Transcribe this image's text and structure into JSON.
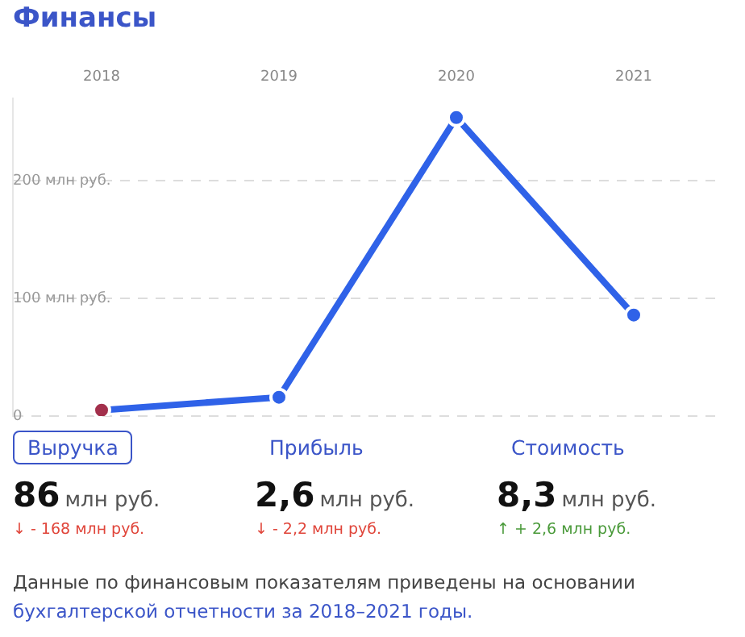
{
  "chart_data": {
    "type": "line",
    "title": "Финансы",
    "categories": [
      "2018",
      "2019",
      "2020",
      "2021"
    ],
    "series": [
      {
        "color": "#2f62e8",
        "colors": [
          "#a3304c",
          "#2f62e8",
          "#2f62e8",
          "#2f62e8"
        ],
        "values": [
          5,
          16,
          254,
          86
        ]
      }
    ],
    "ylim": [
      0,
      270
    ],
    "yticks": [
      {
        "value": 0,
        "label": "0"
      },
      {
        "value": 100,
        "label": "100 млн руб."
      },
      {
        "value": 200,
        "label": "200 млн руб."
      }
    ],
    "grid": "y",
    "legend": false,
    "marker": "circle",
    "line_style": "solid",
    "annotations": [
      "Выручка",
      "Прибыль",
      "Стоимость",
      "86",
      "2,6",
      "8,3",
      "млн руб.",
      "млн руб.",
      "млн руб.",
      "↓ - 168 млн руб.",
      "↓ - 2,2 млн руб.",
      "↑ + 2,6 млн руб.",
      "Данные по финансовым показателям приведены на основании",
      "бухгалтерской отчетности за 2018–2021 годы."
    ]
  }
}
